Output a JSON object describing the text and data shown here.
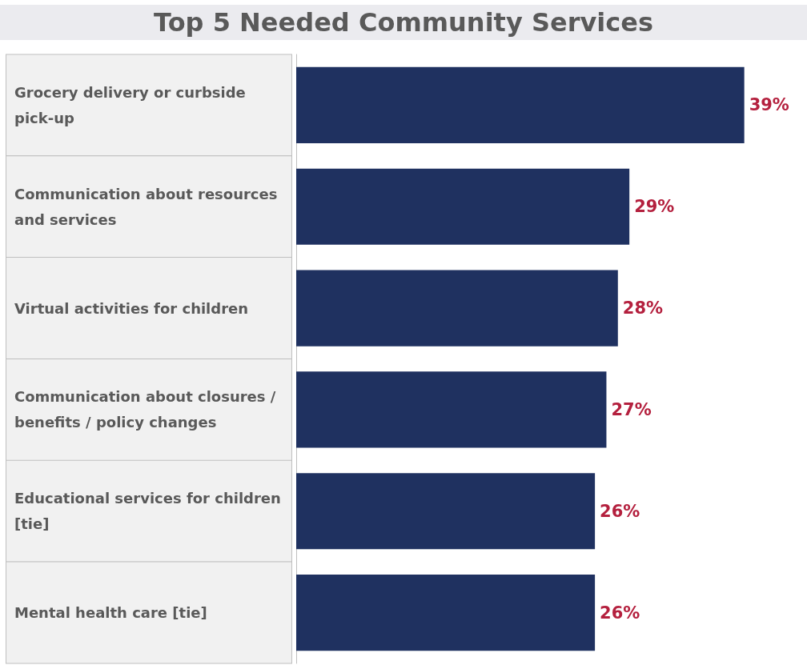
{
  "chart_data": {
    "type": "bar",
    "orientation": "horizontal",
    "title": "Top 5 Needed Community Services",
    "categories": [
      "Grocery delivery or curbside pick-up",
      "Communication about resources and services",
      "Virtual activities for children",
      "Communication about closures / benefits / policy changes",
      "Educational services for children [tie]",
      "Mental health care [tie]"
    ],
    "values": [
      39,
      29,
      28,
      27,
      26,
      26
    ],
    "value_labels": [
      "39%",
      "29%",
      "28%",
      "27%",
      "26%",
      "26%"
    ],
    "color": "#1f3160"
  }
}
